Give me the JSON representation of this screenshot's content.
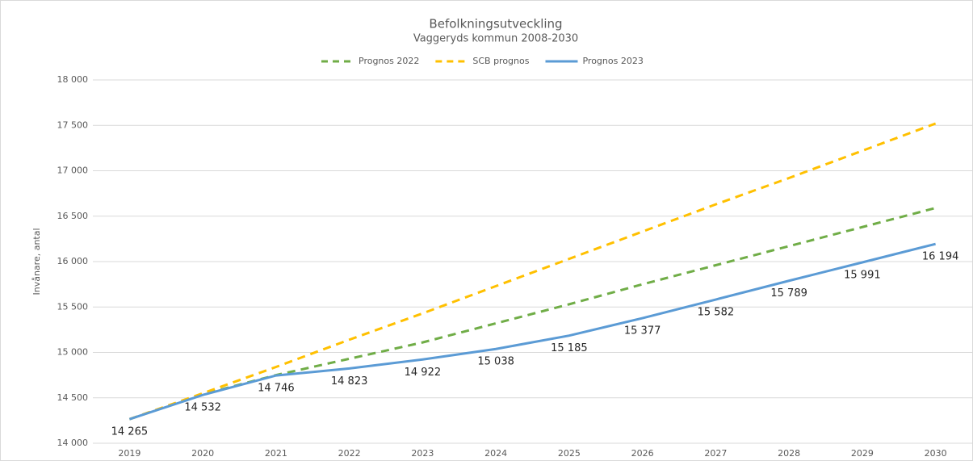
{
  "chart_data": {
    "type": "line",
    "title": "Befolkningsutveckling",
    "subtitle": "Vaggeryds kommun 2008-2030",
    "y_label": "Invånare, antal",
    "categories": [
      "2019",
      "2020",
      "2021",
      "2022",
      "2023",
      "2024",
      "2025",
      "2026",
      "2027",
      "2028",
      "2029",
      "2030"
    ],
    "series": [
      {
        "name": "Prognos 2022",
        "color": "#70ad47",
        "dash": "dashed",
        "values": [
          14265,
          14540,
          14750,
          14930,
          15110,
          15320,
          15530,
          15750,
          15960,
          16170,
          16380,
          16590
        ]
      },
      {
        "name": "SCB prognos",
        "color": "#ffc000",
        "dash": "dashed",
        "values": [
          14265,
          14550,
          14840,
          15140,
          15430,
          15730,
          16030,
          16330,
          16630,
          16920,
          17220,
          17520
        ]
      },
      {
        "name": "Prognos 2023",
        "color": "#5b9bd5",
        "dash": "solid",
        "values": [
          14265,
          14532,
          14746,
          14823,
          14922,
          15038,
          15185,
          15377,
          15582,
          15789,
          15991,
          16194
        ],
        "value_labels": [
          "14 265",
          "14 532",
          "14 746",
          "14 823",
          "14 922",
          "15 038",
          "15 185",
          "15 377",
          "15 582",
          "15 789",
          "15 991",
          "16 194"
        ]
      }
    ],
    "ylim": [
      14000,
      18000
    ],
    "yticks": [
      {
        "value": 14000,
        "label": "14 000"
      },
      {
        "value": 14500,
        "label": "14 500"
      },
      {
        "value": 15000,
        "label": "15 000"
      },
      {
        "value": 15500,
        "label": "15 500"
      },
      {
        "value": 16000,
        "label": "16 000"
      },
      {
        "value": 16500,
        "label": "16 500"
      },
      {
        "value": 17000,
        "label": "17 000"
      },
      {
        "value": 17500,
        "label": "17 500"
      },
      {
        "value": 18000,
        "label": "18 000"
      }
    ],
    "grid": true,
    "legend": "top"
  }
}
